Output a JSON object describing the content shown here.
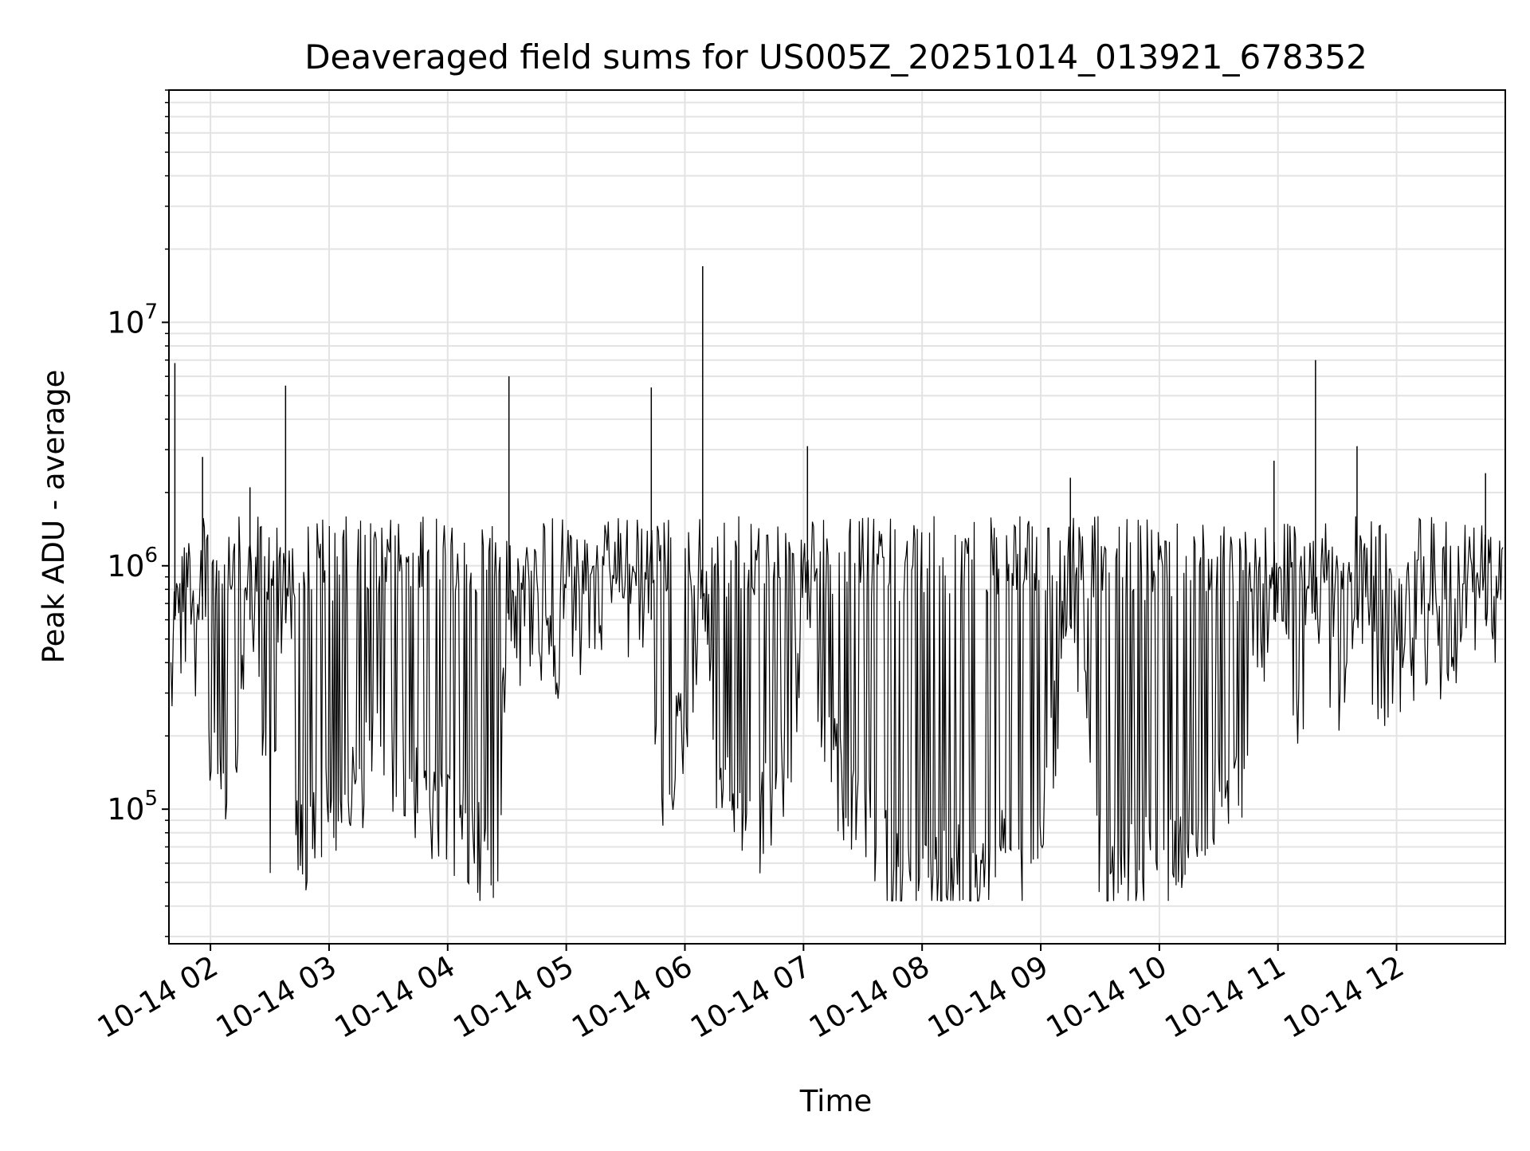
{
  "chart_data": {
    "type": "line",
    "title": "Deaveraged field sums for US005Z_20251014_013921_678352",
    "xlabel": "Time",
    "ylabel": "Peak ADU - average",
    "yscale": "log",
    "grid": true,
    "line_color": "#000000",
    "grid_color": "#e3e3e3",
    "xlim": [
      "2025-10-14 01:39",
      "2025-10-14 12:55"
    ],
    "ylim": [
      28000,
      90000000
    ],
    "x_ticks": [
      {
        "value": "2025-10-14 02:00",
        "label": "10-14 02"
      },
      {
        "value": "2025-10-14 03:00",
        "label": "10-14 03"
      },
      {
        "value": "2025-10-14 04:00",
        "label": "10-14 04"
      },
      {
        "value": "2025-10-14 05:00",
        "label": "10-14 05"
      },
      {
        "value": "2025-10-14 06:00",
        "label": "10-14 06"
      },
      {
        "value": "2025-10-14 07:00",
        "label": "10-14 07"
      },
      {
        "value": "2025-10-14 08:00",
        "label": "10-14 08"
      },
      {
        "value": "2025-10-14 09:00",
        "label": "10-14 09"
      },
      {
        "value": "2025-10-14 10:00",
        "label": "10-14 10"
      },
      {
        "value": "2025-10-14 11:00",
        "label": "10-14 11"
      },
      {
        "value": "2025-10-14 12:00",
        "label": "10-14 12"
      }
    ],
    "y_ticks": [
      {
        "value": 100000,
        "base": "10",
        "exp": "5"
      },
      {
        "value": 1000000,
        "base": "10",
        "exp": "6"
      },
      {
        "value": 10000000,
        "base": "10",
        "exp": "7"
      }
    ],
    "series": [
      {
        "points": [
          [
            "2025-10-14 01:40",
            550000
          ],
          [
            "2025-10-14 01:42",
            6800000
          ],
          [
            "2025-10-14 01:44",
            800000
          ],
          [
            "2025-10-14 01:47",
            1000000
          ],
          [
            "2025-10-14 01:50",
            950000
          ],
          [
            "2025-10-14 01:53",
            650000
          ],
          [
            "2025-10-14 01:56",
            2800000
          ],
          [
            "2025-10-14 01:58",
            450000
          ],
          [
            "2025-10-14 02:00",
            300000
          ],
          [
            "2025-10-14 02:05",
            250000
          ],
          [
            "2025-10-14 02:10",
            200000
          ],
          [
            "2025-10-14 02:20",
            2100000
          ],
          [
            "2025-10-14 02:30",
            140000
          ],
          [
            "2025-10-14 02:38",
            5500000
          ],
          [
            "2025-10-14 02:45",
            110000
          ],
          [
            "2025-10-14 02:55",
            160000
          ],
          [
            "2025-10-14 03:05",
            180000
          ],
          [
            "2025-10-14 03:15",
            220000
          ],
          [
            "2025-10-14 03:25",
            280000
          ],
          [
            "2025-10-14 03:35",
            250000
          ],
          [
            "2025-10-14 03:45",
            200000
          ],
          [
            "2025-10-14 03:55",
            150000
          ],
          [
            "2025-10-14 04:05",
            130000
          ],
          [
            "2025-10-14 04:15",
            110000
          ],
          [
            "2025-10-14 04:25",
            100000
          ],
          [
            "2025-10-14 04:31",
            6000000
          ],
          [
            "2025-10-14 04:35",
            800000
          ],
          [
            "2025-10-14 04:45",
            1000000
          ],
          [
            "2025-10-14 04:55",
            700000
          ],
          [
            "2025-10-14 05:05",
            900000
          ],
          [
            "2025-10-14 05:15",
            1100000
          ],
          [
            "2025-10-14 05:25",
            1200000
          ],
          [
            "2025-10-14 05:35",
            1000000
          ],
          [
            "2025-10-14 05:43",
            5400000
          ],
          [
            "2025-10-14 05:47",
            130000
          ],
          [
            "2025-10-14 05:55",
            300000
          ],
          [
            "2025-10-14 06:05",
            500000
          ],
          [
            "2025-10-14 06:09",
            17000000
          ],
          [
            "2025-10-14 06:15",
            250000
          ],
          [
            "2025-10-14 06:25",
            180000
          ],
          [
            "2025-10-14 06:35",
            130000
          ],
          [
            "2025-10-14 06:45",
            200000
          ],
          [
            "2025-10-14 06:53",
            250000
          ],
          [
            "2025-10-14 07:02",
            3100000
          ],
          [
            "2025-10-14 07:10",
            300000
          ],
          [
            "2025-10-14 07:20",
            200000
          ],
          [
            "2025-10-14 07:30",
            150000
          ],
          [
            "2025-10-14 07:40",
            110000
          ],
          [
            "2025-10-14 07:50",
            80000
          ],
          [
            "2025-10-14 08:00",
            75000
          ],
          [
            "2025-10-14 08:20",
            90000
          ],
          [
            "2025-10-14 08:40",
            100000
          ],
          [
            "2025-10-14 09:00",
            90000
          ],
          [
            "2025-10-14 09:15",
            2300000
          ],
          [
            "2025-10-14 09:30",
            100000
          ],
          [
            "2025-10-14 09:45",
            90000
          ],
          [
            "2025-10-14 10:00",
            100000
          ],
          [
            "2025-10-14 10:20",
            150000
          ],
          [
            "2025-10-14 10:40",
            200000
          ],
          [
            "2025-10-14 10:58",
            2700000
          ],
          [
            "2025-10-14 11:10",
            300000
          ],
          [
            "2025-10-14 11:19",
            7000000
          ],
          [
            "2025-10-14 11:30",
            500000
          ],
          [
            "2025-10-14 11:40",
            3100000
          ],
          [
            "2025-10-14 11:50",
            600000
          ],
          [
            "2025-10-14 12:10",
            700000
          ],
          [
            "2025-10-14 12:30",
            800000
          ],
          [
            "2025-10-14 12:45",
            2400000
          ],
          [
            "2025-10-14 12:54",
            700000
          ]
        ]
      }
    ]
  }
}
